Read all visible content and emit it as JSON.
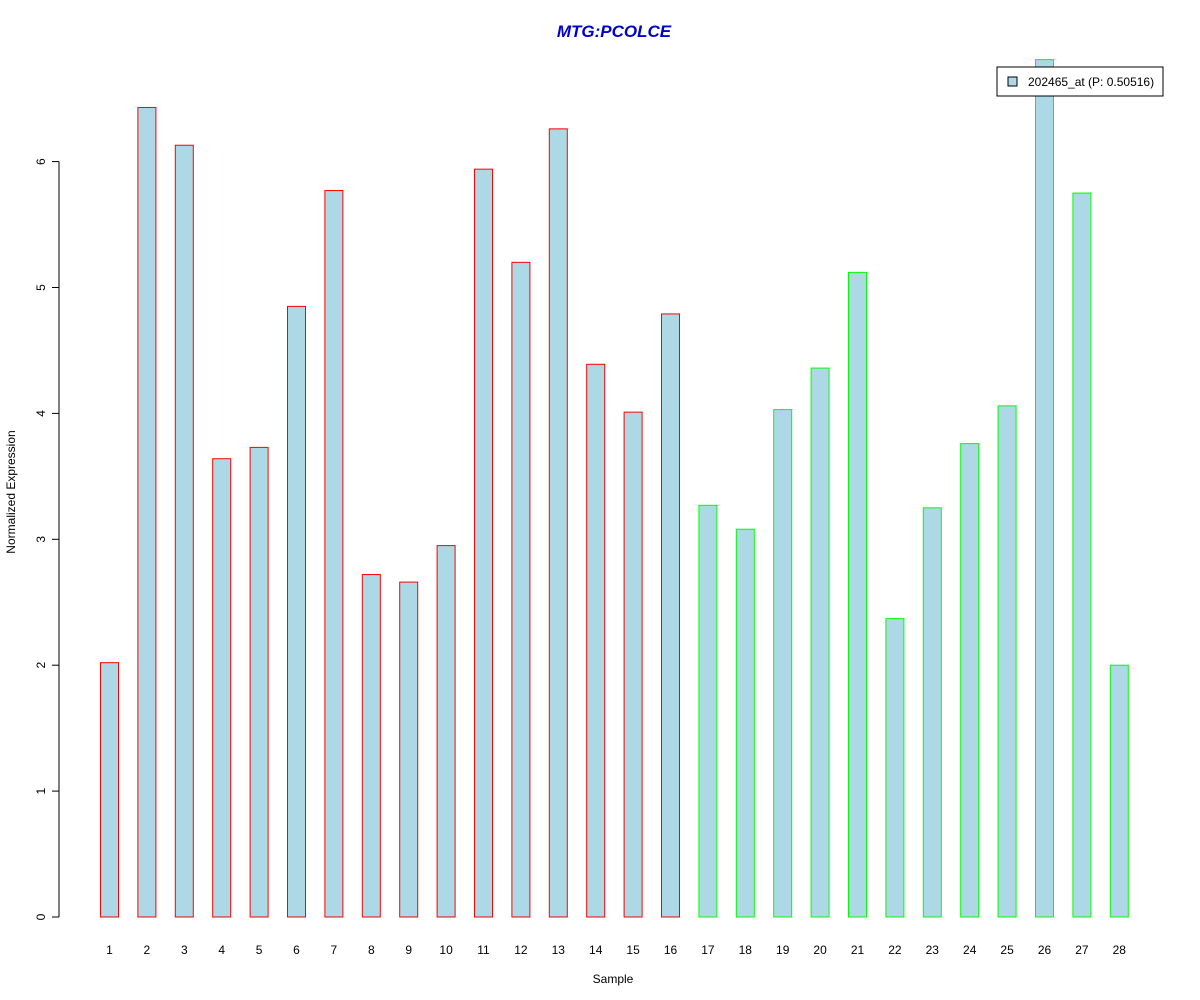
{
  "chart_data": {
    "type": "bar",
    "title": "MTG:PCOLCE",
    "xlabel": "Sample",
    "ylabel": "Normalized Expression",
    "categories": [
      "1",
      "2",
      "3",
      "4",
      "5",
      "6",
      "7",
      "8",
      "9",
      "10",
      "11",
      "12",
      "13",
      "14",
      "15",
      "16",
      "17",
      "18",
      "19",
      "20",
      "21",
      "22",
      "23",
      "24",
      "25",
      "26",
      "27",
      "28"
    ],
    "series": [
      {
        "name": "202465_at (P: 0.50516)",
        "values": [
          2.02,
          6.43,
          6.13,
          3.64,
          3.73,
          4.85,
          5.77,
          2.72,
          2.66,
          2.95,
          5.94,
          5.2,
          6.26,
          4.39,
          4.01,
          4.79,
          3.27,
          3.08,
          4.03,
          4.36,
          5.12,
          2.37,
          3.25,
          3.76,
          4.06,
          6.81,
          5.75,
          2.0
        ]
      }
    ],
    "groups": [
      {
        "samples": [
          1,
          16
        ],
        "border_color": "#ff0000"
      },
      {
        "samples": [
          17,
          28
        ],
        "border_color": "#00ff00"
      }
    ],
    "yticks": [
      0,
      1,
      2,
      3,
      4,
      5,
      6
    ],
    "ylim": [
      0,
      6.81
    ],
    "legend_position": "top-right",
    "grid": false,
    "colors": {
      "bar_fill": "#add8e6",
      "title": "#0000cd",
      "legend_swatch": "#add8e6"
    }
  }
}
